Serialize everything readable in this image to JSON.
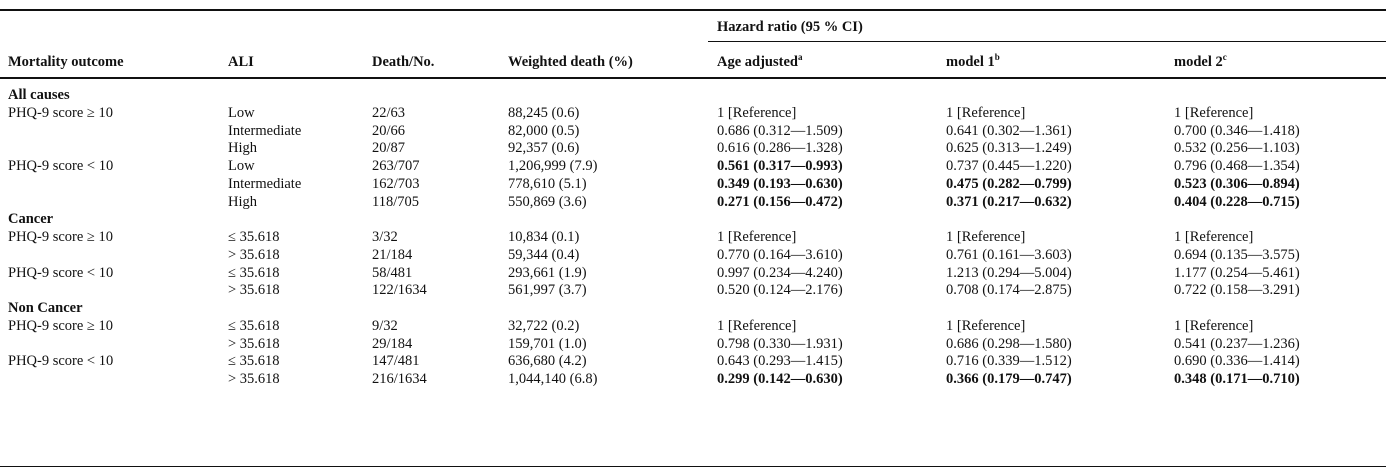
{
  "table": {
    "group_header": "Hazard ratio (95 % CI)",
    "columns": [
      {
        "text": "Mortality outcome"
      },
      {
        "text": "ALI"
      },
      {
        "text": "Death/No."
      },
      {
        "text": "Weighted death (%)"
      },
      {
        "text": "Age adjusted",
        "note": "a"
      },
      {
        "text": "model 1",
        "note": "b"
      },
      {
        "text": "model 2",
        "note": "c"
      }
    ],
    "rows": [
      {
        "section": "All causes"
      },
      {
        "cells": [
          "PHQ-9 score ≥ 10",
          "Low",
          "22/63",
          "88,245 (0.6)",
          "1 [Reference]",
          "1 [Reference]",
          "1 [Reference]"
        ]
      },
      {
        "cells": [
          null,
          "Intermediate",
          "20/66",
          "82,000 (0.5)",
          "0.686 (0.312—1.509)",
          "0.641 (0.302—1.361)",
          "0.700 (0.346—1.418)"
        ]
      },
      {
        "cells": [
          null,
          "High",
          "20/87",
          "92,357 (0.6)",
          "0.616 (0.286—1.328)",
          "0.625 (0.313—1.249)",
          "0.532 (0.256—1.103)"
        ]
      },
      {
        "cells": [
          "PHQ-9 score < 10",
          "Low",
          "263/707",
          "1,206,999 (7.9)",
          "0.561 (0.317—0.993)",
          "0.737 (0.445—1.220)",
          "0.796 (0.468—1.354)"
        ],
        "bold": [
          4
        ]
      },
      {
        "cells": [
          null,
          "Intermediate",
          "162/703",
          "778,610 (5.1)",
          "0.349 (0.193—0.630)",
          "0.475 (0.282—0.799)",
          "0.523 (0.306—0.894)"
        ],
        "bold": [
          4,
          5,
          6
        ]
      },
      {
        "cells": [
          null,
          "High",
          "118/705",
          "550,869 (3.6)",
          "0.271 (0.156—0.472)",
          "0.371 (0.217—0.632)",
          "0.404 (0.228—0.715)"
        ],
        "bold": [
          4,
          5,
          6
        ]
      },
      {
        "section": "Cancer"
      },
      {
        "cells": [
          "PHQ-9 score ≥ 10",
          "≤ 35.618",
          "3/32",
          "10,834 (0.1)",
          "1 [Reference]",
          "1 [Reference]",
          "1 [Reference]"
        ]
      },
      {
        "cells": [
          null,
          "> 35.618",
          "21/184",
          "59,344 (0.4)",
          "0.770 (0.164—3.610)",
          "0.761 (0.161—3.603)",
          "0.694 (0.135—3.575)"
        ]
      },
      {
        "cells": [
          "PHQ-9 score < 10",
          "≤ 35.618",
          "58/481",
          "293,661 (1.9)",
          "0.997 (0.234—4.240)",
          "1.213 (0.294—5.004)",
          "1.177 (0.254—5.461)"
        ]
      },
      {
        "cells": [
          null,
          "> 35.618",
          "122/1634",
          "561,997 (3.7)",
          "0.520 (0.124—2.176)",
          "0.708 (0.174—2.875)",
          "0.722 (0.158—3.291)"
        ]
      },
      {
        "section": "Non Cancer"
      },
      {
        "cells": [
          "PHQ-9 score ≥ 10",
          "≤ 35.618",
          "9/32",
          "32,722 (0.2)",
          "1 [Reference]",
          "1 [Reference]",
          "1 [Reference]"
        ]
      },
      {
        "cells": [
          null,
          "> 35.618",
          "29/184",
          "159,701 (1.0)",
          "0.798 (0.330—1.931)",
          "0.686 (0.298—1.580)",
          "0.541 (0.237—1.236)"
        ]
      },
      {
        "cells": [
          "PHQ-9 score < 10",
          "≤ 35.618",
          "147/481",
          "636,680 (4.2)",
          "0.643 (0.293—1.415)",
          "0.716 (0.339—1.512)",
          "0.690 (0.336—1.414)"
        ]
      },
      {
        "cells": [
          null,
          "> 35.618",
          "216/1634",
          "1,044,140 (6.8)",
          "0.299 (0.142—0.630)",
          "0.366 (0.179—0.747)",
          "0.348 (0.171—0.710)"
        ],
        "bold": [
          4,
          5,
          6
        ]
      }
    ]
  }
}
